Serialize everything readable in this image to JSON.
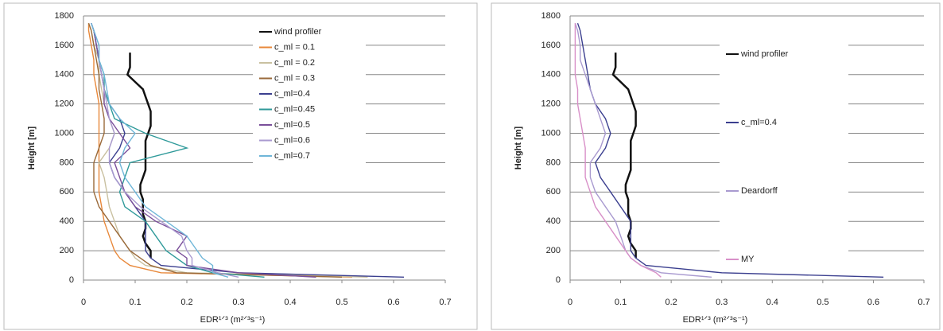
{
  "chart_data": [
    {
      "type": "line",
      "xlabel": "EDR¹ᐟ³ (m²ᐟ³s⁻¹)",
      "ylabel": "Height [m]",
      "xlim": [
        0,
        0.7
      ],
      "xticks": [
        0,
        0.1,
        0.2,
        0.3,
        0.4,
        0.5,
        0.6,
        0.7
      ],
      "ylim": [
        0,
        1800
      ],
      "yticks": [
        0,
        200,
        400,
        600,
        800,
        1000,
        1200,
        1400,
        1600,
        1800
      ],
      "grid": true,
      "legend": "right",
      "series": [
        {
          "name": "wind profiler",
          "color": "#111111",
          "x": [
            0.13,
            0.13,
            0.12,
            0.115,
            0.12,
            0.12,
            0.115,
            0.115,
            0.115,
            0.11,
            0.11,
            0.115,
            0.12,
            0.12,
            0.12,
            0.12,
            0.12,
            0.125,
            0.13,
            0.13,
            0.13,
            0.125,
            0.12,
            0.115,
            0.1,
            0.085,
            0.09,
            0.09,
            0.09
          ],
          "y": [
            150,
            200,
            250,
            300,
            350,
            400,
            450,
            500,
            550,
            600,
            650,
            700,
            750,
            800,
            850,
            900,
            950,
            1000,
            1050,
            1100,
            1150,
            1200,
            1250,
            1300,
            1350,
            1400,
            1450,
            1500,
            1550
          ]
        },
        {
          "name": "c_ml = 0.1",
          "color": "#e8883a",
          "x": [
            0.52,
            0.15,
            0.09,
            0.07,
            0.06,
            0.05,
            0.04,
            0.035,
            0.03,
            0.03,
            0.03,
            0.03,
            0.03,
            0.03,
            0.03,
            0.025,
            0.02,
            0.02,
            0.015,
            0.01,
            0.01
          ],
          "y": [
            20,
            50,
            100,
            150,
            200,
            300,
            400,
            500,
            600,
            700,
            800,
            900,
            1000,
            1100,
            1200,
            1300,
            1400,
            1500,
            1600,
            1700,
            1750
          ]
        },
        {
          "name": "c_ml = 0.2",
          "color": "#c9c0a0",
          "x": [
            0.55,
            0.2,
            0.12,
            0.1,
            0.09,
            0.07,
            0.06,
            0.05,
            0.045,
            0.04,
            0.03,
            0.05,
            0.06,
            0.05,
            0.04,
            0.035,
            0.03,
            0.03,
            0.02,
            0.015,
            0.01
          ],
          "y": [
            20,
            50,
            100,
            150,
            200,
            300,
            400,
            500,
            600,
            700,
            800,
            900,
            1000,
            1100,
            1200,
            1300,
            1400,
            1500,
            1600,
            1700,
            1750
          ]
        },
        {
          "name": "c_ml = 0.3",
          "color": "#9a6a3a",
          "x": [
            0.5,
            0.18,
            0.13,
            0.11,
            0.09,
            0.07,
            0.05,
            0.03,
            0.02,
            0.02,
            0.02,
            0.03,
            0.04,
            0.04,
            0.035,
            0.03,
            0.03,
            0.025,
            0.02,
            0.015,
            0.01
          ],
          "y": [
            20,
            50,
            100,
            150,
            200,
            300,
            400,
            500,
            600,
            700,
            800,
            900,
            1000,
            1100,
            1200,
            1300,
            1400,
            1500,
            1600,
            1700,
            1750
          ]
        },
        {
          "name": "c_ml=0.4",
          "color": "#3b3f8f",
          "x": [
            0.62,
            0.3,
            0.15,
            0.13,
            0.12,
            0.12,
            0.12,
            0.1,
            0.08,
            0.06,
            0.05,
            0.07,
            0.08,
            0.07,
            0.05,
            0.04,
            0.035,
            0.03,
            0.025,
            0.02,
            0.015
          ],
          "y": [
            20,
            50,
            100,
            150,
            200,
            300,
            400,
            500,
            600,
            700,
            800,
            900,
            1000,
            1100,
            1200,
            1300,
            1400,
            1500,
            1600,
            1700,
            1750
          ]
        },
        {
          "name": "c_ml=0.45",
          "color": "#2f9a9a",
          "x": [
            0.35,
            0.25,
            0.2,
            0.18,
            0.16,
            0.14,
            0.12,
            0.08,
            0.07,
            0.08,
            0.09,
            0.2,
            0.12,
            0.06,
            0.05,
            0.04,
            0.04,
            0.03,
            0.025,
            0.02,
            0.015
          ],
          "y": [
            20,
            50,
            100,
            150,
            200,
            300,
            400,
            500,
            600,
            700,
            800,
            900,
            1000,
            1100,
            1200,
            1300,
            1400,
            1500,
            1600,
            1700,
            1750
          ]
        },
        {
          "name": "c_ml=0.5",
          "color": "#7a4f9a",
          "x": [
            0.45,
            0.3,
            0.2,
            0.2,
            0.18,
            0.2,
            0.14,
            0.1,
            0.08,
            0.07,
            0.06,
            0.09,
            0.07,
            0.05,
            0.04,
            0.04,
            0.035,
            0.03,
            0.025,
            0.02,
            0.015
          ],
          "y": [
            20,
            50,
            100,
            150,
            200,
            300,
            400,
            500,
            600,
            700,
            800,
            900,
            1000,
            1100,
            1200,
            1300,
            1400,
            1500,
            1600,
            1700,
            1750
          ]
        },
        {
          "name": "c_ml=0.6",
          "color": "#a99ad0",
          "x": [
            0.3,
            0.26,
            0.21,
            0.21,
            0.2,
            0.19,
            0.15,
            0.11,
            0.08,
            0.06,
            0.05,
            0.05,
            0.06,
            0.05,
            0.045,
            0.04,
            0.035,
            0.03,
            0.03,
            0.02,
            0.015
          ],
          "y": [
            20,
            50,
            100,
            150,
            200,
            300,
            400,
            500,
            600,
            700,
            800,
            900,
            1000,
            1100,
            1200,
            1300,
            1400,
            1500,
            1600,
            1700,
            1750
          ]
        },
        {
          "name": "c_ml=0.7",
          "color": "#6fb6d8",
          "x": [
            0.28,
            0.25,
            0.25,
            0.23,
            0.22,
            0.2,
            0.16,
            0.12,
            0.1,
            0.08,
            0.07,
            0.08,
            0.1,
            0.07,
            0.05,
            0.045,
            0.04,
            0.03,
            0.03,
            0.02,
            0.015
          ],
          "y": [
            20,
            50,
            100,
            150,
            200,
            300,
            400,
            500,
            600,
            700,
            800,
            900,
            1000,
            1100,
            1200,
            1300,
            1400,
            1500,
            1600,
            1700,
            1750
          ]
        }
      ]
    },
    {
      "type": "line",
      "xlabel": "EDR¹ᐟ³ (m²ᐟ³s⁻¹)",
      "ylabel": "Height [m]",
      "xlim": [
        0,
        0.7
      ],
      "xticks": [
        0,
        0.1,
        0.2,
        0.3,
        0.4,
        0.5,
        0.6,
        0.7
      ],
      "ylim": [
        0,
        1800
      ],
      "yticks": [
        0,
        200,
        400,
        600,
        800,
        1000,
        1200,
        1400,
        1600,
        1800
      ],
      "grid": true,
      "legend": "right",
      "series": [
        {
          "name": "wind profiler",
          "color": "#111111",
          "x": [
            0.13,
            0.13,
            0.12,
            0.115,
            0.12,
            0.12,
            0.115,
            0.115,
            0.115,
            0.11,
            0.11,
            0.115,
            0.12,
            0.12,
            0.12,
            0.12,
            0.12,
            0.125,
            0.13,
            0.13,
            0.13,
            0.125,
            0.12,
            0.115,
            0.1,
            0.085,
            0.09,
            0.09,
            0.09
          ],
          "y": [
            150,
            200,
            250,
            300,
            350,
            400,
            450,
            500,
            550,
            600,
            650,
            700,
            750,
            800,
            850,
            900,
            950,
            1000,
            1050,
            1100,
            1150,
            1200,
            1250,
            1300,
            1350,
            1400,
            1450,
            1500,
            1550
          ]
        },
        {
          "name": "c_ml=0.4",
          "color": "#3b3f8f",
          "x": [
            0.62,
            0.3,
            0.15,
            0.13,
            0.12,
            0.12,
            0.12,
            0.1,
            0.08,
            0.06,
            0.05,
            0.07,
            0.08,
            0.07,
            0.05,
            0.04,
            0.035,
            0.03,
            0.025,
            0.02,
            0.015
          ],
          "y": [
            20,
            50,
            100,
            150,
            200,
            300,
            400,
            500,
            600,
            700,
            800,
            900,
            1000,
            1100,
            1200,
            1300,
            1400,
            1500,
            1600,
            1700,
            1750
          ]
        },
        {
          "name": "Deardorff",
          "color": "#a99ad0",
          "x": [
            0.28,
            0.18,
            0.14,
            0.12,
            0.11,
            0.1,
            0.09,
            0.07,
            0.05,
            0.04,
            0.04,
            0.06,
            0.07,
            0.06,
            0.05,
            0.04,
            0.03,
            0.02,
            0.02,
            0.015,
            0.01
          ],
          "y": [
            20,
            50,
            100,
            150,
            200,
            300,
            400,
            500,
            600,
            700,
            800,
            900,
            1000,
            1100,
            1200,
            1300,
            1400,
            1500,
            1600,
            1700,
            1750
          ]
        },
        {
          "name": "MY",
          "color": "#d890c8",
          "x": [
            0.18,
            0.17,
            0.14,
            0.12,
            0.11,
            0.09,
            0.07,
            0.05,
            0.04,
            0.03,
            0.03,
            0.03,
            0.025,
            0.02,
            0.015,
            0.015,
            0.01,
            0.01,
            0.01,
            0.01,
            0.01
          ],
          "y": [
            20,
            50,
            100,
            150,
            200,
            300,
            400,
            500,
            600,
            700,
            800,
            900,
            1000,
            1100,
            1200,
            1300,
            1400,
            1500,
            1600,
            1700,
            1750
          ]
        }
      ]
    }
  ]
}
